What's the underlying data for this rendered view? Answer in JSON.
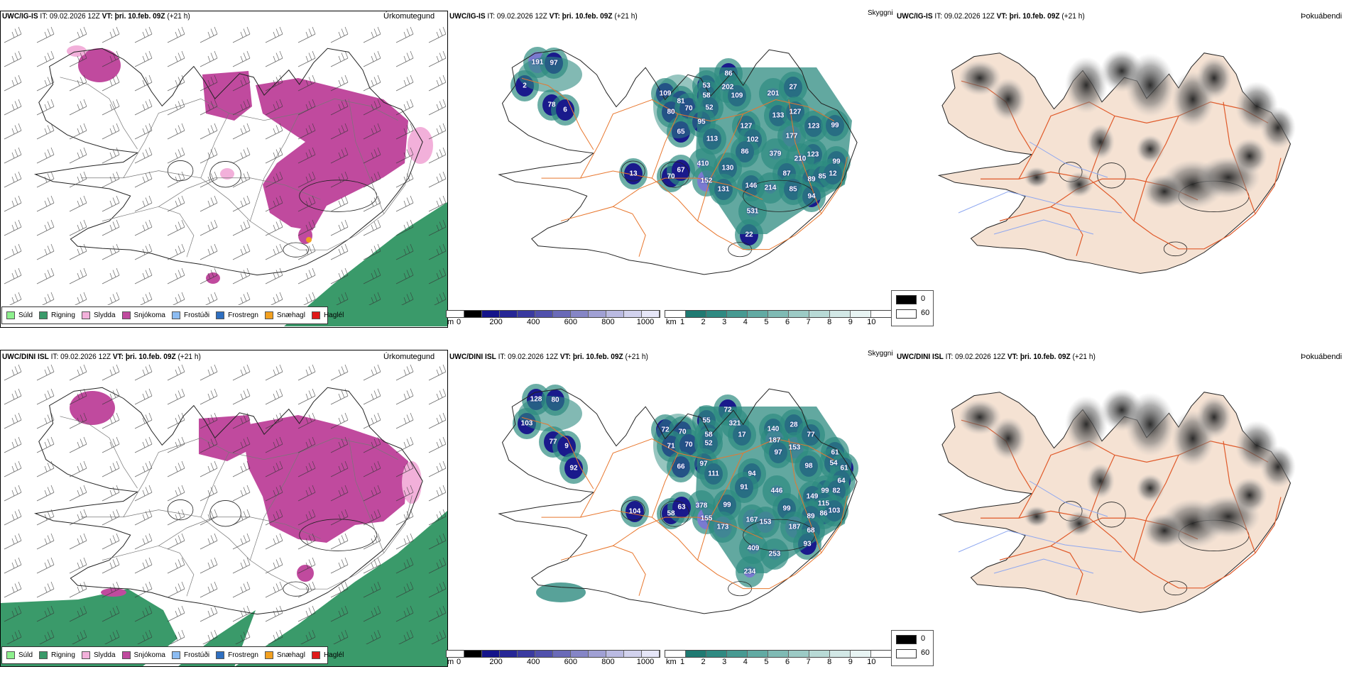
{
  "rows": [
    {
      "model": "UWC/IG-IS",
      "it_label": "IT:",
      "it": "09.02.2026 12Z",
      "vt_label": "VT:",
      "vt": "þri. 10.feb. 09Z",
      "lead": "(+21 h)",
      "cloud_base_labels": [
        "191",
        "97",
        "2",
        "78",
        "6",
        "109",
        "81",
        "80",
        "70",
        "65",
        "53",
        "58",
        "52",
        "95",
        "113",
        "86",
        "202",
        "109",
        "201",
        "27",
        "133",
        "127",
        "127",
        "102",
        "86",
        "379",
        "177",
        "123",
        "123",
        "210",
        "99",
        "99",
        "87",
        "89",
        "85",
        "12",
        "410",
        "130",
        "152",
        "131",
        "146",
        "214",
        "85",
        "94",
        "531",
        "22",
        "70",
        "67",
        "13"
      ]
    },
    {
      "model": "UWC/DINI ISL",
      "it_label": "IT:",
      "it": "09.02.2026 12Z",
      "vt_label": "VT:",
      "vt": "þri. 10.feb. 09Z",
      "lead": "(+21 h)",
      "cloud_base_labels": [
        "128",
        "80",
        "103",
        "77",
        "9",
        "92",
        "72",
        "70",
        "71",
        "70",
        "66",
        "55",
        "58",
        "52",
        "97",
        "111",
        "72",
        "321",
        "17",
        "140",
        "28",
        "187",
        "153",
        "97",
        "77",
        "98",
        "94",
        "91",
        "446",
        "61",
        "54",
        "61",
        "64",
        "99",
        "82",
        "149",
        "99",
        "115",
        "86",
        "103",
        "89",
        "378",
        "99",
        "155",
        "173",
        "167",
        "153",
        "187",
        "68",
        "93",
        "409",
        "253",
        "234",
        "58",
        "63",
        "104"
      ]
    }
  ],
  "panels": {
    "precip_type_title": "Úrkomutegund",
    "visibility_title": "Skyggni",
    "fog_title": "Þokuábendi"
  },
  "precip_legend": [
    {
      "label": "Súld",
      "color": "#8ef08e"
    },
    {
      "label": "Rigning",
      "color": "#3a9a6a"
    },
    {
      "label": "Slydda",
      "color": "#f2b0da"
    },
    {
      "label": "Snjókoma",
      "color": "#c04a9e"
    },
    {
      "label": "Frostúði",
      "color": "#8cbcf2"
    },
    {
      "label": "Frostregn",
      "color": "#2f6fc0"
    },
    {
      "label": "Snæhagl",
      "color": "#f2a020"
    },
    {
      "label": "Haglél",
      "color": "#e01818"
    }
  ],
  "cloud_base_scale": {
    "unit": "m",
    "ticks": [
      "0",
      "200",
      "400",
      "600",
      "800",
      "1000"
    ],
    "colors": [
      "#ffffff",
      "#000000",
      "#14148a",
      "#262696",
      "#3a3aa0",
      "#5050ac",
      "#6a6ab8",
      "#8585c6",
      "#a0a0d4",
      "#babae2",
      "#d2d2ee",
      "#e6e6f8"
    ]
  },
  "visibility_scale": {
    "unit": "km",
    "ticks": [
      "1",
      "2",
      "3",
      "4",
      "5",
      "6",
      "7",
      "8",
      "9",
      "10"
    ],
    "colors": [
      "#ffffff",
      "#1f7a72",
      "#2f8a82",
      "#479a92",
      "#62aaa3",
      "#7fbab4",
      "#9ccac5",
      "#b8dad6",
      "#d2e8e6",
      "#e8f4f3",
      "#ffffff"
    ]
  },
  "fog_legend": [
    {
      "label": "0",
      "color": "#000000"
    },
    {
      "label": "60",
      "color": "#ffffff"
    }
  ]
}
